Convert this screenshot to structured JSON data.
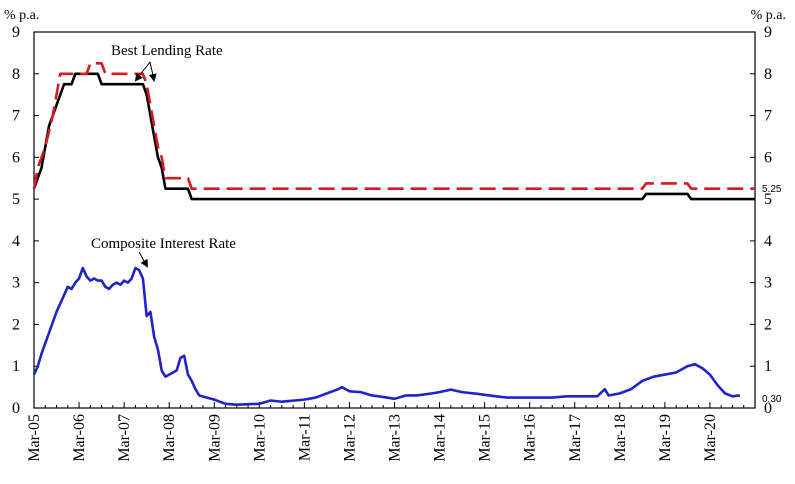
{
  "chart_data": {
    "type": "line",
    "y_unit_left": "% p.a.",
    "y_unit_right": "% p.a.",
    "ylim": [
      0,
      9
    ],
    "yticks": [
      0,
      1,
      2,
      3,
      4,
      5,
      6,
      7,
      8,
      9
    ],
    "xlim": [
      "2005-03",
      "2021-03"
    ],
    "x_tick_labels": [
      "Mar-05",
      "Mar-06",
      "Mar-07",
      "Mar-08",
      "Mar-09",
      "Mar-10",
      "Mar-11",
      "Mar-12",
      "Mar-13",
      "Mar-14",
      "Mar-15",
      "Mar-16",
      "Mar-17",
      "Mar-18",
      "Mar-19",
      "Mar-20"
    ],
    "grid": false,
    "series": [
      {
        "color": "#000000",
        "style": "solid",
        "points": [
          [
            "2005-03",
            5.25
          ],
          [
            "2005-04",
            5.5
          ],
          [
            "2005-05",
            5.75
          ],
          [
            "2005-06",
            6.25
          ],
          [
            "2005-07",
            6.75
          ],
          [
            "2005-08",
            7.0
          ],
          [
            "2005-09",
            7.25
          ],
          [
            "2005-10",
            7.5
          ],
          [
            "2005-11",
            7.75
          ],
          [
            "2006-01",
            7.75
          ],
          [
            "2006-02",
            8.0
          ],
          [
            "2006-08",
            8.0
          ],
          [
            "2006-09",
            7.75
          ],
          [
            "2007-08",
            7.75
          ],
          [
            "2007-09",
            7.5
          ],
          [
            "2007-10",
            7.0
          ],
          [
            "2007-11",
            6.5
          ],
          [
            "2007-12",
            6.0
          ],
          [
            "2008-01",
            5.75
          ],
          [
            "2008-02",
            5.25
          ],
          [
            "2008-08",
            5.25
          ],
          [
            "2008-09",
            5.0
          ],
          [
            "2018-09",
            5.0
          ],
          [
            "2018-10",
            5.125
          ],
          [
            "2019-09",
            5.125
          ],
          [
            "2019-10",
            5.0
          ],
          [
            "2021-03",
            5.0
          ]
        ]
      },
      {
        "color": "#d71920",
        "style": "dashed",
        "points": [
          [
            "2005-03",
            5.25
          ],
          [
            "2005-04",
            5.75
          ],
          [
            "2005-06",
            6.25
          ],
          [
            "2005-08",
            7.0
          ],
          [
            "2005-09",
            7.5
          ],
          [
            "2005-10",
            8.0
          ],
          [
            "2006-05",
            8.0
          ],
          [
            "2006-06",
            8.25
          ],
          [
            "2006-09",
            8.25
          ],
          [
            "2006-10",
            8.0
          ],
          [
            "2007-08",
            8.0
          ],
          [
            "2007-09",
            7.75
          ],
          [
            "2007-10",
            7.25
          ],
          [
            "2007-11",
            6.75
          ],
          [
            "2007-12",
            6.25
          ],
          [
            "2008-01",
            6.0
          ],
          [
            "2008-02",
            5.5
          ],
          [
            "2008-08",
            5.5
          ],
          [
            "2008-09",
            5.25
          ],
          [
            "2018-09",
            5.25
          ],
          [
            "2018-10",
            5.375
          ],
          [
            "2019-09",
            5.375
          ],
          [
            "2019-10",
            5.25
          ],
          [
            "2021-03",
            5.25
          ]
        ]
      },
      {
        "color": "#1f23c8",
        "style": "solid",
        "points": [
          [
            "2005-03",
            0.8
          ],
          [
            "2005-04",
            1.0
          ],
          [
            "2005-05",
            1.3
          ],
          [
            "2005-07",
            1.8
          ],
          [
            "2005-09",
            2.3
          ],
          [
            "2005-11",
            2.7
          ],
          [
            "2005-12",
            2.9
          ],
          [
            "2006-01",
            2.85
          ],
          [
            "2006-02",
            3.0
          ],
          [
            "2006-03",
            3.1
          ],
          [
            "2006-04",
            3.35
          ],
          [
            "2006-05",
            3.15
          ],
          [
            "2006-06",
            3.05
          ],
          [
            "2006-07",
            3.1
          ],
          [
            "2006-08",
            3.05
          ],
          [
            "2006-09",
            3.05
          ],
          [
            "2006-10",
            2.9
          ],
          [
            "2006-11",
            2.85
          ],
          [
            "2006-12",
            2.95
          ],
          [
            "2007-01",
            3.0
          ],
          [
            "2007-02",
            2.95
          ],
          [
            "2007-03",
            3.05
          ],
          [
            "2007-04",
            3.0
          ],
          [
            "2007-05",
            3.1
          ],
          [
            "2007-06",
            3.35
          ],
          [
            "2007-07",
            3.3
          ],
          [
            "2007-08",
            3.1
          ],
          [
            "2007-09",
            2.2
          ],
          [
            "2007-10",
            2.3
          ],
          [
            "2007-11",
            1.7
          ],
          [
            "2007-12",
            1.4
          ],
          [
            "2008-01",
            0.9
          ],
          [
            "2008-02",
            0.75
          ],
          [
            "2008-03",
            0.8
          ],
          [
            "2008-05",
            0.9
          ],
          [
            "2008-06",
            1.2
          ],
          [
            "2008-07",
            1.25
          ],
          [
            "2008-08",
            0.8
          ],
          [
            "2008-09",
            0.65
          ],
          [
            "2008-10",
            0.45
          ],
          [
            "2008-11",
            0.3
          ],
          [
            "2009-03",
            0.2
          ],
          [
            "2009-06",
            0.1
          ],
          [
            "2009-09",
            0.08
          ],
          [
            "2010-03",
            0.1
          ],
          [
            "2010-06",
            0.18
          ],
          [
            "2010-09",
            0.15
          ],
          [
            "2011-03",
            0.2
          ],
          [
            "2011-06",
            0.25
          ],
          [
            "2011-09",
            0.35
          ],
          [
            "2011-12",
            0.45
          ],
          [
            "2012-01",
            0.5
          ],
          [
            "2012-03",
            0.4
          ],
          [
            "2012-06",
            0.38
          ],
          [
            "2012-09",
            0.3
          ],
          [
            "2013-01",
            0.25
          ],
          [
            "2013-03",
            0.22
          ],
          [
            "2013-06",
            0.3
          ],
          [
            "2013-09",
            0.3
          ],
          [
            "2014-01",
            0.35
          ],
          [
            "2014-03",
            0.38
          ],
          [
            "2014-06",
            0.44
          ],
          [
            "2014-09",
            0.38
          ],
          [
            "2015-01",
            0.34
          ],
          [
            "2015-06",
            0.28
          ],
          [
            "2015-09",
            0.25
          ],
          [
            "2016-03",
            0.25
          ],
          [
            "2016-09",
            0.25
          ],
          [
            "2017-01",
            0.28
          ],
          [
            "2017-06",
            0.28
          ],
          [
            "2017-09",
            0.28
          ],
          [
            "2017-11",
            0.45
          ],
          [
            "2017-12",
            0.3
          ],
          [
            "2018-03",
            0.35
          ],
          [
            "2018-06",
            0.45
          ],
          [
            "2018-09",
            0.65
          ],
          [
            "2018-12",
            0.75
          ],
          [
            "2019-03",
            0.8
          ],
          [
            "2019-06",
            0.85
          ],
          [
            "2019-09",
            1.0
          ],
          [
            "2019-11",
            1.05
          ],
          [
            "2020-01",
            0.95
          ],
          [
            "2020-03",
            0.8
          ],
          [
            "2020-05",
            0.55
          ],
          [
            "2020-07",
            0.35
          ],
          [
            "2020-09",
            0.28
          ],
          [
            "2020-11",
            0.3
          ]
        ]
      }
    ],
    "annotations": [
      {
        "text": "Best Lending Rate",
        "target_x": "2007-08",
        "target_y": 8.0
      },
      {
        "text": "Composite Interest Rate",
        "target_x": "2007-06",
        "target_y": 3.35
      }
    ],
    "end_labels": [
      {
        "text": "5.25",
        "y": 5.25
      },
      {
        "text": "0.30",
        "y": 0.3
      }
    ]
  }
}
